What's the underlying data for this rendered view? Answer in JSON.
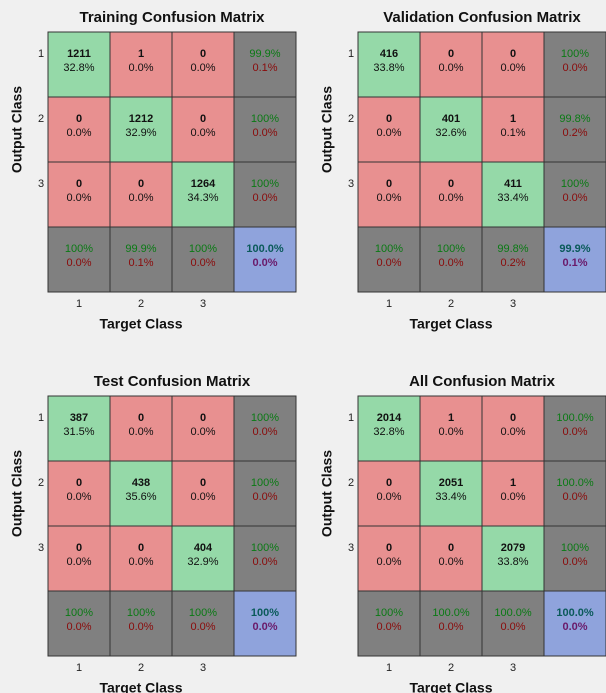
{
  "panels": [
    {
      "title": "Training Confusion Matrix",
      "x_label": "Target Class",
      "y_label": "Output Class",
      "x_ticks": [
        "1",
        "2",
        "3"
      ],
      "y_ticks": [
        "1",
        "2",
        "3"
      ],
      "rows": [
        [
          [
            1211,
            "32.8%"
          ],
          [
            1,
            "0.0%"
          ],
          [
            0,
            "0.0%"
          ],
          [
            "99.9%",
            "0.1%"
          ]
        ],
        [
          [
            0,
            "0.0%"
          ],
          [
            1212,
            "32.9%"
          ],
          [
            0,
            "0.0%"
          ],
          [
            "100%",
            "0.0%"
          ]
        ],
        [
          [
            0,
            "0.0%"
          ],
          [
            0,
            "0.0%"
          ],
          [
            1264,
            "34.3%"
          ],
          [
            "100%",
            "0.0%"
          ]
        ],
        [
          [
            "100%",
            "0.0%"
          ],
          [
            "99.9%",
            "0.1%"
          ],
          [
            "100%",
            "0.0%"
          ],
          [
            "100.0%",
            "0.0%"
          ]
        ]
      ]
    },
    {
      "title": "Validation Confusion Matrix",
      "x_label": "Target Class",
      "y_label": "Output Class",
      "x_ticks": [
        "1",
        "2",
        "3"
      ],
      "y_ticks": [
        "1",
        "2",
        "3"
      ],
      "rows": [
        [
          [
            416,
            "33.8%"
          ],
          [
            0,
            "0.0%"
          ],
          [
            0,
            "0.0%"
          ],
          [
            "100%",
            "0.0%"
          ]
        ],
        [
          [
            0,
            "0.0%"
          ],
          [
            401,
            "32.6%"
          ],
          [
            1,
            "0.1%"
          ],
          [
            "99.8%",
            "0.2%"
          ]
        ],
        [
          [
            0,
            "0.0%"
          ],
          [
            0,
            "0.0%"
          ],
          [
            411,
            "33.4%"
          ],
          [
            "100%",
            "0.0%"
          ]
        ],
        [
          [
            "100%",
            "0.0%"
          ],
          [
            "100%",
            "0.0%"
          ],
          [
            "99.8%",
            "0.2%"
          ],
          [
            "99.9%",
            "0.1%"
          ]
        ]
      ]
    },
    {
      "title": "Test Confusion Matrix",
      "x_label": "Target Class",
      "y_label": "Output Class",
      "x_ticks": [
        "1",
        "2",
        "3"
      ],
      "y_ticks": [
        "1",
        "2",
        "3"
      ],
      "rows": [
        [
          [
            387,
            "31.5%"
          ],
          [
            0,
            "0.0%"
          ],
          [
            0,
            "0.0%"
          ],
          [
            "100%",
            "0.0%"
          ]
        ],
        [
          [
            0,
            "0.0%"
          ],
          [
            438,
            "35.6%"
          ],
          [
            0,
            "0.0%"
          ],
          [
            "100%",
            "0.0%"
          ]
        ],
        [
          [
            0,
            "0.0%"
          ],
          [
            0,
            "0.0%"
          ],
          [
            404,
            "32.9%"
          ],
          [
            "100%",
            "0.0%"
          ]
        ],
        [
          [
            "100%",
            "0.0%"
          ],
          [
            "100%",
            "0.0%"
          ],
          [
            "100%",
            "0.0%"
          ],
          [
            "100%",
            "0.0%"
          ]
        ]
      ]
    },
    {
      "title": "All Confusion Matrix",
      "x_label": "Target Class",
      "y_label": "Output Class",
      "x_ticks": [
        "1",
        "2",
        "3"
      ],
      "y_ticks": [
        "1",
        "2",
        "3"
      ],
      "rows": [
        [
          [
            2014,
            "32.8%"
          ],
          [
            1,
            "0.0%"
          ],
          [
            0,
            "0.0%"
          ],
          [
            "100.0%",
            "0.0%"
          ]
        ],
        [
          [
            0,
            "0.0%"
          ],
          [
            2051,
            "33.4%"
          ],
          [
            1,
            "0.0%"
          ],
          [
            "100.0%",
            "0.0%"
          ]
        ],
        [
          [
            0,
            "0.0%"
          ],
          [
            0,
            "0.0%"
          ],
          [
            2079,
            "33.8%"
          ],
          [
            "100%",
            "0.0%"
          ]
        ],
        [
          [
            "100%",
            "0.0%"
          ],
          [
            "100.0%",
            "0.0%"
          ],
          [
            "100.0%",
            "0.0%"
          ],
          [
            "100.0%",
            "0.0%"
          ]
        ]
      ]
    }
  ]
}
